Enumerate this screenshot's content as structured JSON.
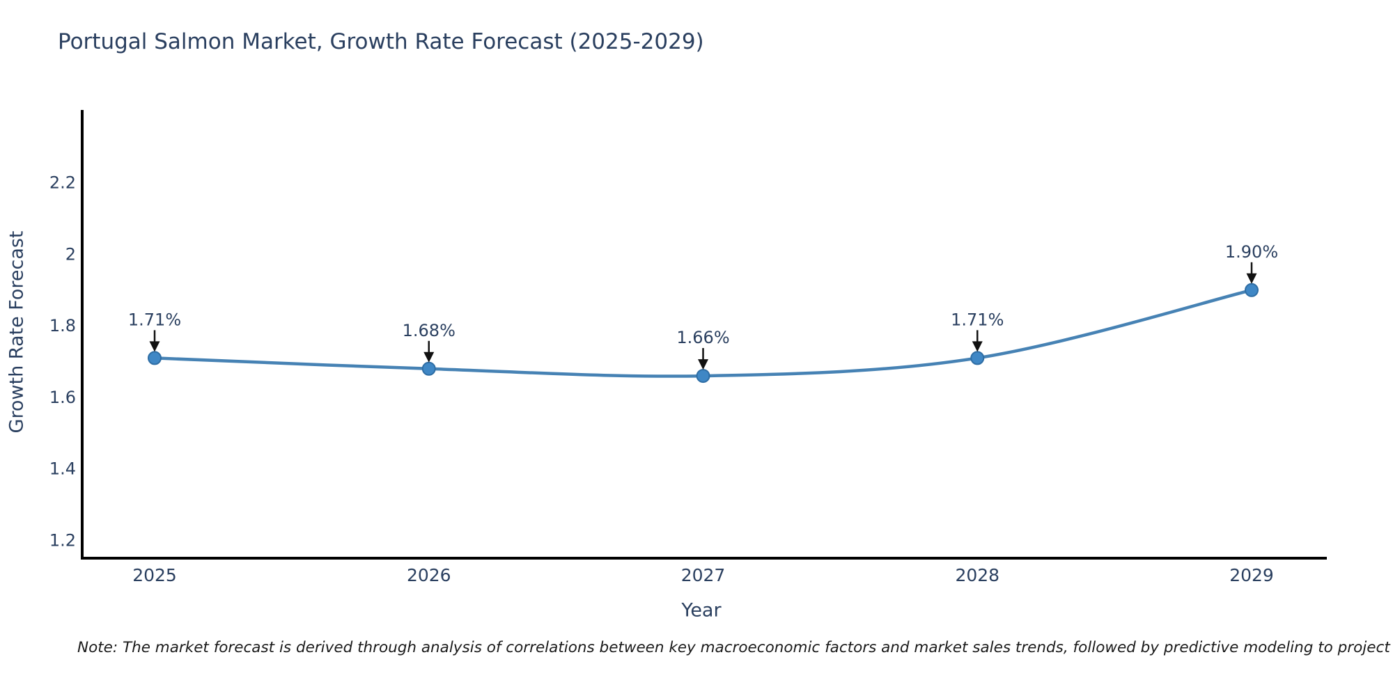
{
  "chart_data": {
    "type": "line",
    "title": "Portugal Salmon Market, Growth Rate Forecast (2025-2029)",
    "xlabel": "Year",
    "ylabel": "Growth Rate Forecast",
    "x": [
      "2025",
      "2026",
      "2027",
      "2028",
      "2029"
    ],
    "y": [
      1.71,
      1.68,
      1.66,
      1.71,
      1.9
    ],
    "point_labels": [
      "1.71%",
      "1.68%",
      "1.66%",
      "1.71%",
      "1.90%"
    ],
    "yticks": [
      2.2,
      2,
      1.8,
      1.6,
      1.4,
      1.2
    ],
    "ylim": [
      1.15,
      2.4
    ],
    "grid": false,
    "legend": false,
    "line_shape": "spline",
    "colors": {
      "line": "#4682b4",
      "marker_fill": "#3f87c5",
      "marker_edge": "#2e6da4",
      "axis": "#000000",
      "tick_text": "#2a3f5f",
      "annotation_text": "#2a3f5f",
      "annotation_arrow": "#111111"
    }
  },
  "note": "Note: The market forecast is derived through analysis of correlations between key macroeconomic factors and market sales trends, followed by predictive modeling to project future sales"
}
